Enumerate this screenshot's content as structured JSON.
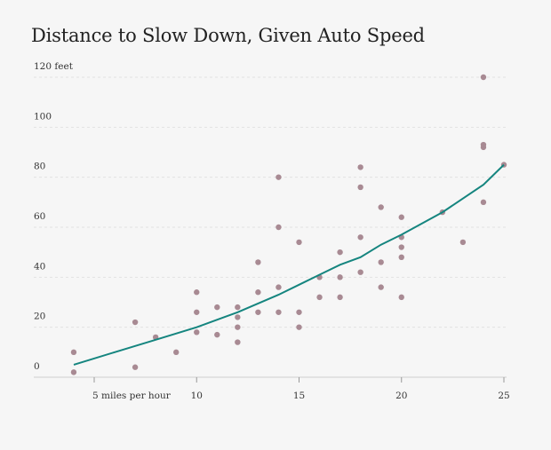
{
  "chart_data": {
    "type": "scatter",
    "title": "Distance to Slow Down, Given Auto Speed",
    "xlim": [
      3,
      25.5
    ],
    "ylim": [
      0,
      120
    ],
    "y_ticks": [
      {
        "value": 0,
        "label": "0"
      },
      {
        "value": 20,
        "label": "20"
      },
      {
        "value": 40,
        "label": "40"
      },
      {
        "value": 60,
        "label": "60"
      },
      {
        "value": 80,
        "label": "80"
      },
      {
        "value": 100,
        "label": "100"
      },
      {
        "value": 120,
        "label": "120 feet"
      }
    ],
    "x_ticks": [
      {
        "value": 5,
        "label": "5 miles per hour"
      },
      {
        "value": 10,
        "label": "10"
      },
      {
        "value": 15,
        "label": "15"
      },
      {
        "value": 20,
        "label": "20"
      },
      {
        "value": 25,
        "label": "25"
      }
    ],
    "grid": "horizontal",
    "points": [
      [
        4,
        2
      ],
      [
        4,
        10
      ],
      [
        7,
        4
      ],
      [
        7,
        22
      ],
      [
        8,
        16
      ],
      [
        9,
        10
      ],
      [
        10,
        18
      ],
      [
        10,
        26
      ],
      [
        10,
        34
      ],
      [
        11,
        17
      ],
      [
        11,
        28
      ],
      [
        12,
        14
      ],
      [
        12,
        20
      ],
      [
        12,
        24
      ],
      [
        12,
        28
      ],
      [
        13,
        26
      ],
      [
        13,
        34
      ],
      [
        13,
        46
      ],
      [
        14,
        26
      ],
      [
        14,
        36
      ],
      [
        14,
        60
      ],
      [
        14,
        80
      ],
      [
        15,
        20
      ],
      [
        15,
        26
      ],
      [
        15,
        54
      ],
      [
        16,
        32
      ],
      [
        16,
        40
      ],
      [
        17,
        32
      ],
      [
        17,
        40
      ],
      [
        17,
        50
      ],
      [
        18,
        42
      ],
      [
        18,
        56
      ],
      [
        18,
        76
      ],
      [
        18,
        84
      ],
      [
        19,
        36
      ],
      [
        19,
        46
      ],
      [
        19,
        68
      ],
      [
        20,
        32
      ],
      [
        20,
        48
      ],
      [
        20,
        52
      ],
      [
        20,
        56
      ],
      [
        20,
        64
      ],
      [
        22,
        66
      ],
      [
        23,
        54
      ],
      [
        24,
        70
      ],
      [
        24,
        92
      ],
      [
        24,
        93
      ],
      [
        24,
        120
      ],
      [
        25,
        85
      ]
    ],
    "fit_line": [
      [
        4,
        5
      ],
      [
        6,
        10
      ],
      [
        8,
        15
      ],
      [
        10,
        20
      ],
      [
        12,
        26
      ],
      [
        14,
        33
      ],
      [
        15,
        37
      ],
      [
        16,
        41
      ],
      [
        17,
        45
      ],
      [
        18,
        48
      ],
      [
        19,
        53
      ],
      [
        20,
        57
      ],
      [
        22,
        66
      ],
      [
        24,
        77
      ],
      [
        25,
        85
      ]
    ],
    "colors": {
      "points": "#a88a93",
      "fit_line": "#15857f",
      "grid": "#e2e2e2"
    }
  }
}
